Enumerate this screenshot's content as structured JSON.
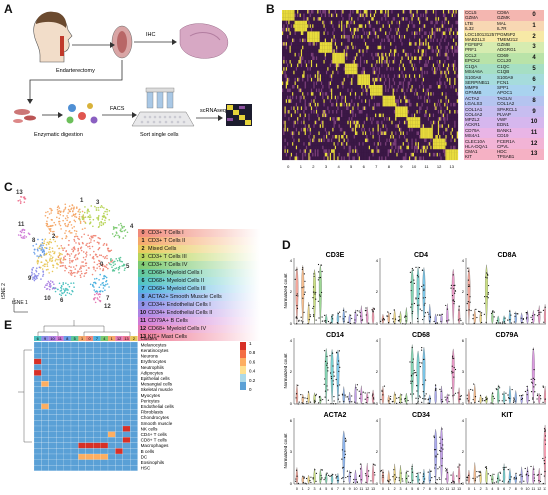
{
  "panels": {
    "A": {
      "letter": "A",
      "labels": {
        "endarterectomy": "Endarterectomy",
        "ihc": "IHC",
        "enzymatic": "Enzymatic digestion",
        "facs": "FACS",
        "sort": "Sort single cells",
        "scrnaseq": "scRNAseq"
      }
    },
    "B": {
      "letter": "B",
      "clusters": [
        {
          "id": "0",
          "genes": [
            "CCL5",
            "GZMA",
            "CD8A",
            "GZMK"
          ],
          "color": "#f4b6b0"
        },
        {
          "id": "1",
          "genes": [
            "LTB",
            "IL32",
            "MAL",
            "IL7R"
          ],
          "color": "#f8d7b3"
        },
        {
          "id": "2",
          "genes": [
            "LOC100131257",
            "MAB21L3",
            "PGM5P2",
            "TMEM212"
          ],
          "color": "#f7e9a6"
        },
        {
          "id": "3",
          "genes": [
            "FGFBP2",
            "PRF1",
            "GZMB",
            "ADGRG1"
          ],
          "color": "#d6ecb0"
        },
        {
          "id": "4",
          "genes": [
            "CCL2",
            "EPCK2",
            "CD69",
            "CCL20"
          ],
          "color": "#b9e3a8"
        },
        {
          "id": "5",
          "genes": [
            "C1QA",
            "MS4A6A",
            "C1QC",
            "C1QB"
          ],
          "color": "#a6dfc4"
        },
        {
          "id": "6",
          "genes": [
            "S100A8",
            "SERPINB11",
            "S100A9",
            "FCN1"
          ],
          "color": "#a6dcdc"
        },
        {
          "id": "7",
          "genes": [
            "MMP9",
            "GPNMB",
            "SPP1",
            "APOC1"
          ],
          "color": "#a9d3ef"
        },
        {
          "id": "8",
          "genes": [
            "ACTA2",
            "LGALS3",
            "TAGLN",
            "COL1A2"
          ],
          "color": "#b5c4f0"
        },
        {
          "id": "9",
          "genes": [
            "COL1A1",
            "COL4A2",
            "SPARCL1",
            "PLVAP"
          ],
          "color": "#c7bdf0"
        },
        {
          "id": "10",
          "genes": [
            "MPZL2",
            "ACKR1",
            "VWF",
            "EDN1"
          ],
          "color": "#d6b7ee"
        },
        {
          "id": "11",
          "genes": [
            "CD79A",
            "MS4A1",
            "BANK1",
            "CD19"
          ],
          "color": "#e9b5e6"
        },
        {
          "id": "12",
          "genes": [
            "CLEC10A",
            "HLA-DQA1",
            "FCER1A",
            "CPVL"
          ],
          "color": "#f2b4d6"
        },
        {
          "id": "13",
          "genes": [
            "CMA1",
            "KIT",
            "HDC",
            "TPSAB1"
          ],
          "color": "#f5b1c4"
        }
      ],
      "xticks": [
        "0",
        "1",
        "2",
        "3",
        "4",
        "5",
        "6",
        "7",
        "8",
        "9",
        "10",
        "11",
        "12",
        "13"
      ]
    },
    "C": {
      "letter": "C",
      "axis_x": "tSNE 1",
      "axis_y": "tSNE 2",
      "legend": [
        {
          "id": "0",
          "label": "CD3+ T Cells I",
          "color": "#f08a7a"
        },
        {
          "id": "1",
          "label": "CD3+ T Cells II",
          "color": "#f5a86a"
        },
        {
          "id": "2",
          "label": "Mixed Cells",
          "color": "#e8c85a"
        },
        {
          "id": "3",
          "label": "CD3+ T Cells III",
          "color": "#b8d458"
        },
        {
          "id": "4",
          "label": "CD3+ T Cells IV",
          "color": "#7cc970"
        },
        {
          "id": "5",
          "label": "CD68+ Myeloid Cells I",
          "color": "#5cc69a"
        },
        {
          "id": "6",
          "label": "CD68+ Myeloid Cells II",
          "color": "#4ec2c0"
        },
        {
          "id": "7",
          "label": "CD68+ Myeloid Cells III",
          "color": "#4fb3e0"
        },
        {
          "id": "8",
          "label": "ACTA2+ Smooth Muscle Cells",
          "color": "#6a9ee8"
        },
        {
          "id": "9",
          "label": "CD34+ Endothelial Cells I",
          "color": "#8d8ee8"
        },
        {
          "id": "10",
          "label": "CD34+ Endothelial Cells II",
          "color": "#ad82e2"
        },
        {
          "id": "11",
          "label": "CD79A+ B Cells",
          "color": "#cf7ad6"
        },
        {
          "id": "12",
          "label": "CD68+ Myeloid Cells IV",
          "color": "#e47ab6"
        },
        {
          "id": "13",
          "label": "KIT+ Mast Cells",
          "color": "#ef7c96"
        }
      ]
    },
    "D": {
      "letter": "D",
      "ylabel": "Normalized count",
      "genes": [
        {
          "name": "CD3E",
          "ymax": "4",
          "ymid": "2"
        },
        {
          "name": "CD4",
          "ymax": "4",
          "ymid": "2"
        },
        {
          "name": "CD8A",
          "ymax": "4",
          "ymid": "2"
        },
        {
          "name": "CD14",
          "ymax": "4",
          "ymid": "2"
        },
        {
          "name": "CD68",
          "ymax": "4",
          "ymid": "2"
        },
        {
          "name": "CD79A",
          "ymax": "6",
          "ymid": "3"
        },
        {
          "name": "ACTA2",
          "ymax": "6",
          "ymid": "3"
        },
        {
          "name": "CD34",
          "ymax": "4",
          "ymid": "2"
        },
        {
          "name": "KIT",
          "ymax": "4",
          "ymid": "2"
        }
      ],
      "xticks": [
        "0",
        "1",
        "2",
        "3",
        "4",
        "5",
        "6",
        "7",
        "8",
        "9",
        "10",
        "11",
        "12",
        "13"
      ]
    },
    "E": {
      "letter": "E",
      "col_labels": [
        "6",
        "9",
        "10",
        "11",
        "8",
        "5",
        "1",
        "0",
        "7",
        "4",
        "1",
        "12",
        "13",
        "2"
      ],
      "clusters_label": "Clusters",
      "rows": [
        "Melanocytes",
        "Keratinocytes",
        "Neurons",
        "Erythrocytes",
        "Neutrophils",
        "Adipocytes",
        "Epithelial cells",
        "Mesangial cells",
        "Skeletal muscle",
        "Myocytes",
        "Pericytes",
        "Endothelial cells",
        "Fibroblasts",
        "Chondrocytes",
        "Smooth muscle",
        "NK cells",
        "CD4+ T cells",
        "CD8+ T cells",
        "Macrophages",
        "B cells",
        "DC",
        "Eosinophils",
        "HSC"
      ],
      "colorbar": [
        "1",
        "0.8",
        "0.6",
        "0.4",
        "0.2",
        "0"
      ],
      "values": [
        [
          0.1,
          0.1,
          0.1,
          0.1,
          0.1,
          0.1,
          0.1,
          0.1,
          0.1,
          0.1,
          0.1,
          0.1,
          0.1,
          0.1
        ],
        [
          0.1,
          0.1,
          0.1,
          0.1,
          0.1,
          0.1,
          0.1,
          0.1,
          0.1,
          0.1,
          0.1,
          0.1,
          0.1,
          0.1
        ],
        [
          0.1,
          0.1,
          0.1,
          0.1,
          0.1,
          0.1,
          0.1,
          0.1,
          0.1,
          0.1,
          0.1,
          0.1,
          0.1,
          0.1
        ],
        [
          0.9,
          0.1,
          0.1,
          0.1,
          0.1,
          0.1,
          0.1,
          0.1,
          0.1,
          0.1,
          0.1,
          0.1,
          0.1,
          0.1
        ],
        [
          0.1,
          0.1,
          0.1,
          0.1,
          0.1,
          0.1,
          0.1,
          0.1,
          0.1,
          0.1,
          0.1,
          0.1,
          0.1,
          0.1
        ],
        [
          0.9,
          0.1,
          0.1,
          0.1,
          0.1,
          0.1,
          0.1,
          0.1,
          0.1,
          0.1,
          0.1,
          0.1,
          0.1,
          0.1
        ],
        [
          0.1,
          0.1,
          0.1,
          0.1,
          0.1,
          0.1,
          0.1,
          0.1,
          0.1,
          0.1,
          0.1,
          0.1,
          0.1,
          0.1
        ],
        [
          0.1,
          0.6,
          0.1,
          0.1,
          0.1,
          0.1,
          0.1,
          0.1,
          0.1,
          0.1,
          0.1,
          0.1,
          0.1,
          0.1
        ],
        [
          0.1,
          0.1,
          0.1,
          0.1,
          0.1,
          0.1,
          0.1,
          0.1,
          0.1,
          0.1,
          0.1,
          0.1,
          0.1,
          0.1
        ],
        [
          0.1,
          0.1,
          0.1,
          0.1,
          0.1,
          0.1,
          0.1,
          0.1,
          0.1,
          0.1,
          0.1,
          0.1,
          0.1,
          0.1
        ],
        [
          0.1,
          0.1,
          0.1,
          0.1,
          0.1,
          0.1,
          0.1,
          0.1,
          0.1,
          0.1,
          0.1,
          0.1,
          0.1,
          0.1
        ],
        [
          0.1,
          0.6,
          0.1,
          0.1,
          0.1,
          0.1,
          0.1,
          0.1,
          0.1,
          0.1,
          0.1,
          0.1,
          0.1,
          0.1
        ],
        [
          0.1,
          0.1,
          0.1,
          0.1,
          0.1,
          0.1,
          0.1,
          0.1,
          0.1,
          0.1,
          0.1,
          0.1,
          0.1,
          0.1
        ],
        [
          0.1,
          0.1,
          0.1,
          0.1,
          0.1,
          0.1,
          0.1,
          0.1,
          0.1,
          0.1,
          0.1,
          0.1,
          0.1,
          0.1
        ],
        [
          0.1,
          0.1,
          0.1,
          0.1,
          0.1,
          0.1,
          0.1,
          0.1,
          0.1,
          0.1,
          0.1,
          0.1,
          0.1,
          0.1
        ],
        [
          0.1,
          0.1,
          0.1,
          0.1,
          0.1,
          0.1,
          0.1,
          0.1,
          0.1,
          0.1,
          0.1,
          0.1,
          0.9,
          0.1
        ],
        [
          0.1,
          0.1,
          0.1,
          0.1,
          0.1,
          0.1,
          0.1,
          0.1,
          0.1,
          0.1,
          0.6,
          0.1,
          0.1,
          0.1
        ],
        [
          0.1,
          0.1,
          0.1,
          0.1,
          0.1,
          0.1,
          0.1,
          0.1,
          0.1,
          0.1,
          0.1,
          0.1,
          0.9,
          0.1
        ],
        [
          0.1,
          0.1,
          0.1,
          0.1,
          0.1,
          0.1,
          0.9,
          0.9,
          0.9,
          0.9,
          0.1,
          0.1,
          0.1,
          0.1
        ],
        [
          0.1,
          0.1,
          0.1,
          0.1,
          0.1,
          0.1,
          0.1,
          0.1,
          0.1,
          0.1,
          0.1,
          0.9,
          0.1,
          0.1
        ],
        [
          0.1,
          0.1,
          0.1,
          0.1,
          0.1,
          0.1,
          0.6,
          0.6,
          0.6,
          0.6,
          0.1,
          0.1,
          0.1,
          0.1
        ],
        [
          0.1,
          0.1,
          0.1,
          0.1,
          0.1,
          0.1,
          0.1,
          0.1,
          0.1,
          0.1,
          0.1,
          0.1,
          0.1,
          0.1
        ],
        [
          0.1,
          0.1,
          0.1,
          0.1,
          0.1,
          0.1,
          0.1,
          0.1,
          0.1,
          0.1,
          0.1,
          0.1,
          0.1,
          0.1
        ]
      ]
    }
  }
}
